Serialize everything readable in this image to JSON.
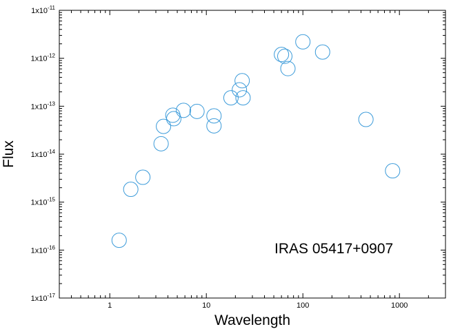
{
  "chart_data": {
    "type": "scatter",
    "xlabel": "Wavelength",
    "ylabel": "Flux",
    "x_scale": "log",
    "y_scale": "log",
    "xlim": [
      0.3,
      3000
    ],
    "ylim": [
      1e-17,
      1e-11
    ],
    "grid": false,
    "legend": "none",
    "marker": "open-circle",
    "marker_color": "#3a9ad9",
    "annotation": "IRAS 05417+0907",
    "x_ticks": [
      {
        "value": 1,
        "label": "1"
      },
      {
        "value": 10,
        "label": "10"
      },
      {
        "value": 100,
        "label": "100"
      },
      {
        "value": 1000,
        "label": "1000"
      }
    ],
    "y_ticks": [
      {
        "value": 1e-17,
        "base": "1x10",
        "exp": "-17"
      },
      {
        "value": 1e-16,
        "base": "1x10",
        "exp": "-16"
      },
      {
        "value": 1e-15,
        "base": "1x10",
        "exp": "-15"
      },
      {
        "value": 1e-14,
        "base": "1x10",
        "exp": "-14"
      },
      {
        "value": 1e-13,
        "base": "1x10",
        "exp": "-13"
      },
      {
        "value": 1e-12,
        "base": "1x10",
        "exp": "-12"
      },
      {
        "value": 1e-11,
        "base": "1x10",
        "exp": "-11"
      }
    ],
    "points": [
      {
        "x": 1.25,
        "y": 1.6e-16
      },
      {
        "x": 1.65,
        "y": 1.85e-15
      },
      {
        "x": 2.2,
        "y": 3.3e-15
      },
      {
        "x": 3.4,
        "y": 1.65e-14
      },
      {
        "x": 3.6,
        "y": 3.8e-14
      },
      {
        "x": 4.5,
        "y": 6.5e-14
      },
      {
        "x": 4.6,
        "y": 5.5e-14
      },
      {
        "x": 5.8,
        "y": 8.2e-14
      },
      {
        "x": 8.0,
        "y": 7.8e-14
      },
      {
        "x": 12.0,
        "y": 6.3e-14
      },
      {
        "x": 12.0,
        "y": 3.9e-14
      },
      {
        "x": 18.0,
        "y": 1.5e-13
      },
      {
        "x": 22.0,
        "y": 2.2e-13
      },
      {
        "x": 23.5,
        "y": 3.4e-13
      },
      {
        "x": 24.0,
        "y": 1.5e-13
      },
      {
        "x": 60.0,
        "y": 1.2e-12
      },
      {
        "x": 65.0,
        "y": 1.1e-12
      },
      {
        "x": 70.0,
        "y": 6.1e-13
      },
      {
        "x": 100.0,
        "y": 2.2e-12
      },
      {
        "x": 160.0,
        "y": 1.35e-12
      },
      {
        "x": 450.0,
        "y": 5.3e-14
      },
      {
        "x": 850.0,
        "y": 4.5e-15
      }
    ]
  }
}
